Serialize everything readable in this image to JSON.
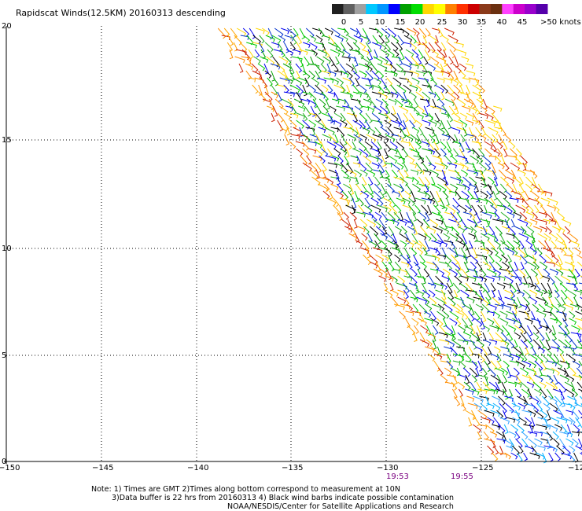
{
  "title": "Rapidscat Winds(12.5KM) 20160313 descending",
  "colorbar": {
    "ticks": [
      "0",
      "5",
      "10",
      "15",
      "20",
      "25",
      "30",
      "35",
      "40",
      "45"
    ],
    "max_label": ">50 knots",
    "colors": [
      "#202020",
      "#606060",
      "#a0a0a0",
      "#00c8ff",
      "#0096ff",
      "#0000ff",
      "#00a000",
      "#00dd00",
      "#ffd700",
      "#ffff00",
      "#ff8000",
      "#ff3000",
      "#cc0000",
      "#8b3a1a",
      "#6b3010",
      "#ff40ff",
      "#cc00cc",
      "#9900cc",
      "#5500aa"
    ]
  },
  "x_axis": {
    "ticks": [
      "−150",
      "−145",
      "−140",
      "−135",
      "−130",
      "−125",
      "−12"
    ]
  },
  "y_axis": {
    "ticks": [
      "0",
      "5",
      "10",
      "15",
      "20"
    ]
  },
  "times": [
    "19:53",
    "19:55"
  ],
  "notes": [
    "Note: 1) Times are GMT 2)Times along bottom correspond to measurement at 10N",
    "3)Data buffer is 22 hrs from 20160313 4) Black wind barbs indicate possible contamination",
    "NOAA/NESDIS/Center for Satellite Applications and Research"
  ],
  "swath_palette": {
    "edge": [
      "#ff8c00",
      "#cc2000",
      "#ffa500"
    ],
    "inner": [
      "#00a000",
      "#0000ee",
      "#0030cc",
      "#00c800",
      "#000000",
      "#ffd700",
      "#20b020"
    ],
    "south": [
      "#00b0ff",
      "#0000ee",
      "#000000",
      "#30a0ff"
    ]
  }
}
